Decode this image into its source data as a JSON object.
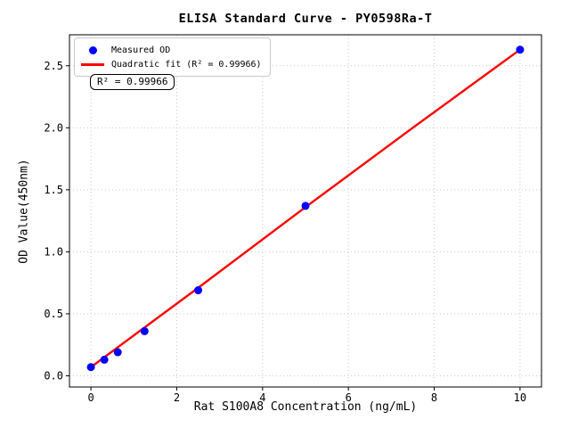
{
  "figure": {
    "background": "#ffffff",
    "title": "ELISA Standard Curve - PY0598Ra-T"
  },
  "legend": {
    "items": [
      {
        "label": "Measured OD",
        "marker": "dot",
        "color": "#0000ff"
      },
      {
        "label": "Quadratic fit (R² = 0.99966)",
        "marker": "line",
        "color": "#ff0000"
      }
    ]
  },
  "annotation": {
    "text": "R² = 0.99966"
  },
  "chart_data": {
    "type": "scatter",
    "title": "ELISA Standard Curve - PY0598Ra-T",
    "xlabel": "Rat S100A8 Concentration (ng/mL)",
    "ylabel": "OD Value(450nm)",
    "x_ticks": [
      0,
      2,
      4,
      6,
      8,
      10
    ],
    "x_tick_labels": [
      "0",
      "2",
      "4",
      "6",
      "8",
      "10"
    ],
    "y_ticks": [
      0.0,
      0.5,
      1.0,
      1.5,
      2.0,
      2.5
    ],
    "y_tick_labels": [
      "0.0",
      "0.5",
      "1.0",
      "1.5",
      "2.0",
      "2.5"
    ],
    "xlim": [
      -0.5,
      10.5
    ],
    "ylim": [
      -0.09,
      2.75
    ],
    "grid": true,
    "grid_style": "dotted",
    "grid_color": "#c9c9c9",
    "spine_color": "#000000",
    "series": [
      {
        "name": "Measured OD",
        "type": "scatter",
        "color": "#0000ff",
        "marker_size": 9,
        "x": [
          0,
          0.3125,
          0.625,
          1.25,
          2.5,
          5,
          10
        ],
        "y": [
          0.07,
          0.13,
          0.19,
          0.36,
          0.69,
          1.37,
          2.63
        ]
      },
      {
        "name": "Quadratic fit",
        "type": "line",
        "color": "#ff0000",
        "line_width": 2.4,
        "r_squared": 0.99966,
        "x": [
          0,
          1.25,
          2.5,
          5,
          7.5,
          10
        ],
        "y": [
          0.07,
          0.39,
          0.71,
          1.36,
          2.0,
          2.63
        ]
      }
    ]
  }
}
